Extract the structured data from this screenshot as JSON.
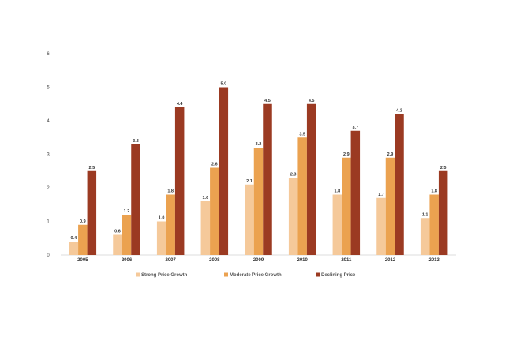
{
  "chart_data": {
    "type": "bar",
    "title": "",
    "xlabel": "",
    "ylabel": "",
    "ylim": [
      0,
      6
    ],
    "yticks": [
      0,
      1,
      2,
      3,
      4,
      5,
      6
    ],
    "grid": false,
    "legend_position": "bottom",
    "categories": [
      "2005",
      "2006",
      "2007",
      "2008",
      "2009",
      "2010",
      "2011",
      "2012",
      "2013"
    ],
    "series": [
      {
        "name": "Strong Price Growth",
        "color": "#F5C99A",
        "values": [
          0.4,
          0.6,
          1.0,
          1.6,
          2.1,
          2.3,
          1.8,
          1.7,
          1.1
        ],
        "labels": [
          "0.4",
          "0.6",
          "1.0",
          "1.6",
          "2.1",
          "2.3",
          "1.8",
          "1.7",
          "1.1"
        ]
      },
      {
        "name": "Moderate Price Growth",
        "color": "#EBA250",
        "values": [
          0.9,
          1.2,
          1.8,
          2.6,
          3.2,
          3.5,
          2.9,
          2.9,
          1.8
        ],
        "labels": [
          "0.9",
          "1.2",
          "1.8",
          "2.6",
          "3.2",
          "3.5",
          "2.9",
          "2.9",
          "1.8"
        ]
      },
      {
        "name": "Declining Price",
        "color": "#9B3A22",
        "values": [
          2.5,
          3.3,
          4.4,
          5.0,
          4.5,
          4.5,
          3.7,
          4.2,
          2.5
        ],
        "labels": [
          "2.5",
          "3.3",
          "4.4",
          "5.0",
          "4.5",
          "4.5",
          "3.7",
          "4.2",
          "2.5"
        ]
      }
    ]
  }
}
